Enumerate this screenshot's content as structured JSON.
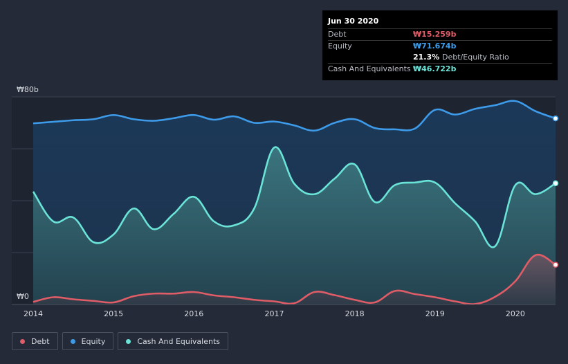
{
  "tooltip": {
    "date": "Jun 30 2020",
    "rows": [
      {
        "label": "Debt",
        "value": "₩15.259b",
        "color": "#e05c66"
      },
      {
        "label": "Equity",
        "value": "₩71.674b",
        "color": "#3d9be9"
      },
      {
        "label": "",
        "value": "21.3%",
        "suffix": "Debt/Equity Ratio",
        "color": "#ffffff"
      },
      {
        "label": "Cash And Equivalents",
        "value": "₩46.722b",
        "color": "#6be4d8"
      }
    ]
  },
  "legend": [
    {
      "label": "Debt",
      "color": "#e05c66"
    },
    {
      "label": "Equity",
      "color": "#3d9be9"
    },
    {
      "label": "Cash And Equivalents",
      "color": "#6be4d8"
    }
  ],
  "chart_data": {
    "type": "area",
    "title": "",
    "xlabel": "",
    "ylabel": "",
    "y_unit": "₩ billion",
    "ylim": [
      0,
      80
    ],
    "xlim": [
      2014.0,
      2020.5
    ],
    "y_tick_labels": {
      "top": "₩80b",
      "bottom": "₩0"
    },
    "x_tick_labels": [
      "2014",
      "2015",
      "2016",
      "2017",
      "2018",
      "2019",
      "2020"
    ],
    "x_ticks": [
      2014,
      2015,
      2016,
      2017,
      2018,
      2019,
      2020
    ],
    "grid": true,
    "series": [
      {
        "name": "Equity",
        "color": "#3d9be9",
        "x": [
          2014.0,
          2014.25,
          2014.5,
          2014.75,
          2015.0,
          2015.25,
          2015.5,
          2015.75,
          2016.0,
          2016.25,
          2016.5,
          2016.75,
          2017.0,
          2017.25,
          2017.5,
          2017.75,
          2018.0,
          2018.25,
          2018.5,
          2018.75,
          2019.0,
          2019.25,
          2019.5,
          2019.75,
          2020.0,
          2020.25,
          2020.5
        ],
        "values": [
          69.8,
          70.4,
          71.0,
          71.4,
          73.0,
          71.4,
          70.8,
          71.8,
          73.0,
          71.2,
          72.5,
          70.0,
          70.5,
          69.0,
          67.0,
          70.0,
          71.4,
          68.0,
          67.5,
          67.8,
          75.0,
          73.2,
          75.4,
          76.8,
          78.4,
          74.5,
          71.7
        ]
      },
      {
        "name": "Cash And Equivalents",
        "color": "#6be4d8",
        "x": [
          2014.0,
          2014.25,
          2014.5,
          2014.75,
          2015.0,
          2015.25,
          2015.5,
          2015.75,
          2016.0,
          2016.25,
          2016.5,
          2016.75,
          2017.0,
          2017.25,
          2017.5,
          2017.75,
          2018.0,
          2018.25,
          2018.5,
          2018.75,
          2019.0,
          2019.25,
          2019.5,
          2019.75,
          2020.0,
          2020.25,
          2020.5
        ],
        "values": [
          43.5,
          32.0,
          33.5,
          24.0,
          27.0,
          37.0,
          29.0,
          35.0,
          41.5,
          32.0,
          30.5,
          37.0,
          60.5,
          46.5,
          42.5,
          48.5,
          54.0,
          39.5,
          46.0,
          47.0,
          47.0,
          39.0,
          32.0,
          22.5,
          46.0,
          42.5,
          46.7
        ]
      },
      {
        "name": "Debt",
        "color": "#e05c66",
        "x": [
          2014.0,
          2014.25,
          2014.5,
          2014.75,
          2015.0,
          2015.25,
          2015.5,
          2015.75,
          2016.0,
          2016.25,
          2016.5,
          2016.75,
          2017.0,
          2017.25,
          2017.5,
          2017.75,
          2018.0,
          2018.25,
          2018.5,
          2018.75,
          2019.0,
          2019.25,
          2019.5,
          2019.75,
          2020.0,
          2020.25,
          2020.5
        ],
        "values": [
          1.0,
          2.8,
          2.0,
          1.4,
          0.8,
          3.2,
          4.2,
          4.2,
          4.8,
          3.5,
          2.8,
          1.8,
          1.2,
          0.5,
          4.8,
          3.6,
          1.8,
          0.8,
          5.2,
          4.0,
          2.8,
          1.2,
          0.2,
          3.0,
          9.0,
          19.0,
          15.3
        ]
      }
    ]
  }
}
